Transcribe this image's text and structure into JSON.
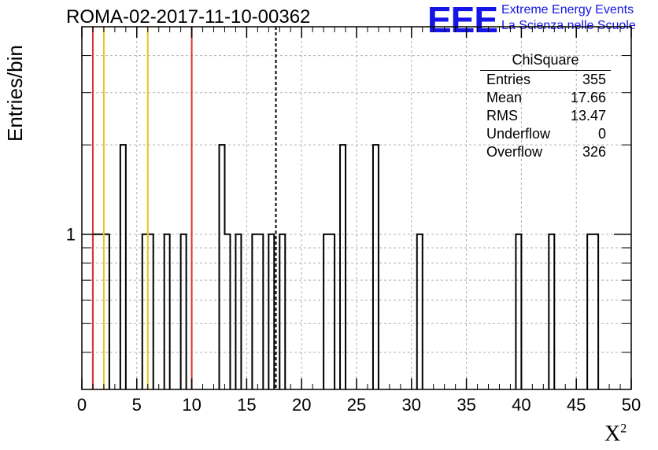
{
  "title": "ROMA-02-2017-11-10-00362",
  "logo": {
    "mark": "EEE",
    "line1": "Extreme Energy Events",
    "line2": "La Scienza nelle Scuole"
  },
  "stats": {
    "title": "ChiSquare",
    "rows": [
      {
        "label": "Entries",
        "value": "355"
      },
      {
        "label": "Mean",
        "value": "17.66"
      },
      {
        "label": "RMS",
        "value": "13.47"
      },
      {
        "label": "Underflow",
        "value": "0"
      },
      {
        "label": "Overflow",
        "value": "326"
      }
    ]
  },
  "chart_data": {
    "type": "histogram",
    "xlabel": "X",
    "xlabel_superscript": "2",
    "ylabel": "Entries/bin",
    "xlim": [
      0,
      50
    ],
    "y_scale": "log",
    "ylim": [
      0.3,
      5
    ],
    "grid": true,
    "x_ticks": [
      0,
      5,
      10,
      15,
      20,
      25,
      30,
      35,
      40,
      45,
      50
    ],
    "y_tick_labels": [
      {
        "value": 1,
        "label": "1"
      }
    ],
    "bin_width": 0.5,
    "bins": [
      {
        "x": 1.0,
        "y": 1
      },
      {
        "x": 1.5,
        "y": 1
      },
      {
        "x": 2.0,
        "y": 1
      },
      {
        "x": 3.5,
        "y": 2
      },
      {
        "x": 5.5,
        "y": 1
      },
      {
        "x": 6.0,
        "y": 1
      },
      {
        "x": 7.5,
        "y": 1
      },
      {
        "x": 9.0,
        "y": 1
      },
      {
        "x": 12.5,
        "y": 2
      },
      {
        "x": 13.0,
        "y": 1
      },
      {
        "x": 14.0,
        "y": 1
      },
      {
        "x": 15.5,
        "y": 1
      },
      {
        "x": 16.0,
        "y": 1
      },
      {
        "x": 17.0,
        "y": 1
      },
      {
        "x": 18.0,
        "y": 1
      },
      {
        "x": 22.0,
        "y": 1
      },
      {
        "x": 22.5,
        "y": 1
      },
      {
        "x": 23.5,
        "y": 2
      },
      {
        "x": 26.5,
        "y": 2
      },
      {
        "x": 30.5,
        "y": 1
      },
      {
        "x": 39.5,
        "y": 1
      },
      {
        "x": 42.5,
        "y": 1
      },
      {
        "x": 46.0,
        "y": 1
      },
      {
        "x": 46.5,
        "y": 1
      }
    ],
    "reference_lines": [
      {
        "x": 1.0,
        "color": "#e03030",
        "style": "solid"
      },
      {
        "x": 2.0,
        "color": "#f0c020",
        "style": "solid"
      },
      {
        "x": 6.0,
        "color": "#f0c020",
        "style": "solid"
      },
      {
        "x": 10.0,
        "color": "#e03030",
        "style": "solid"
      },
      {
        "x": 17.66,
        "color": "#000000",
        "style": "dashed"
      }
    ]
  }
}
